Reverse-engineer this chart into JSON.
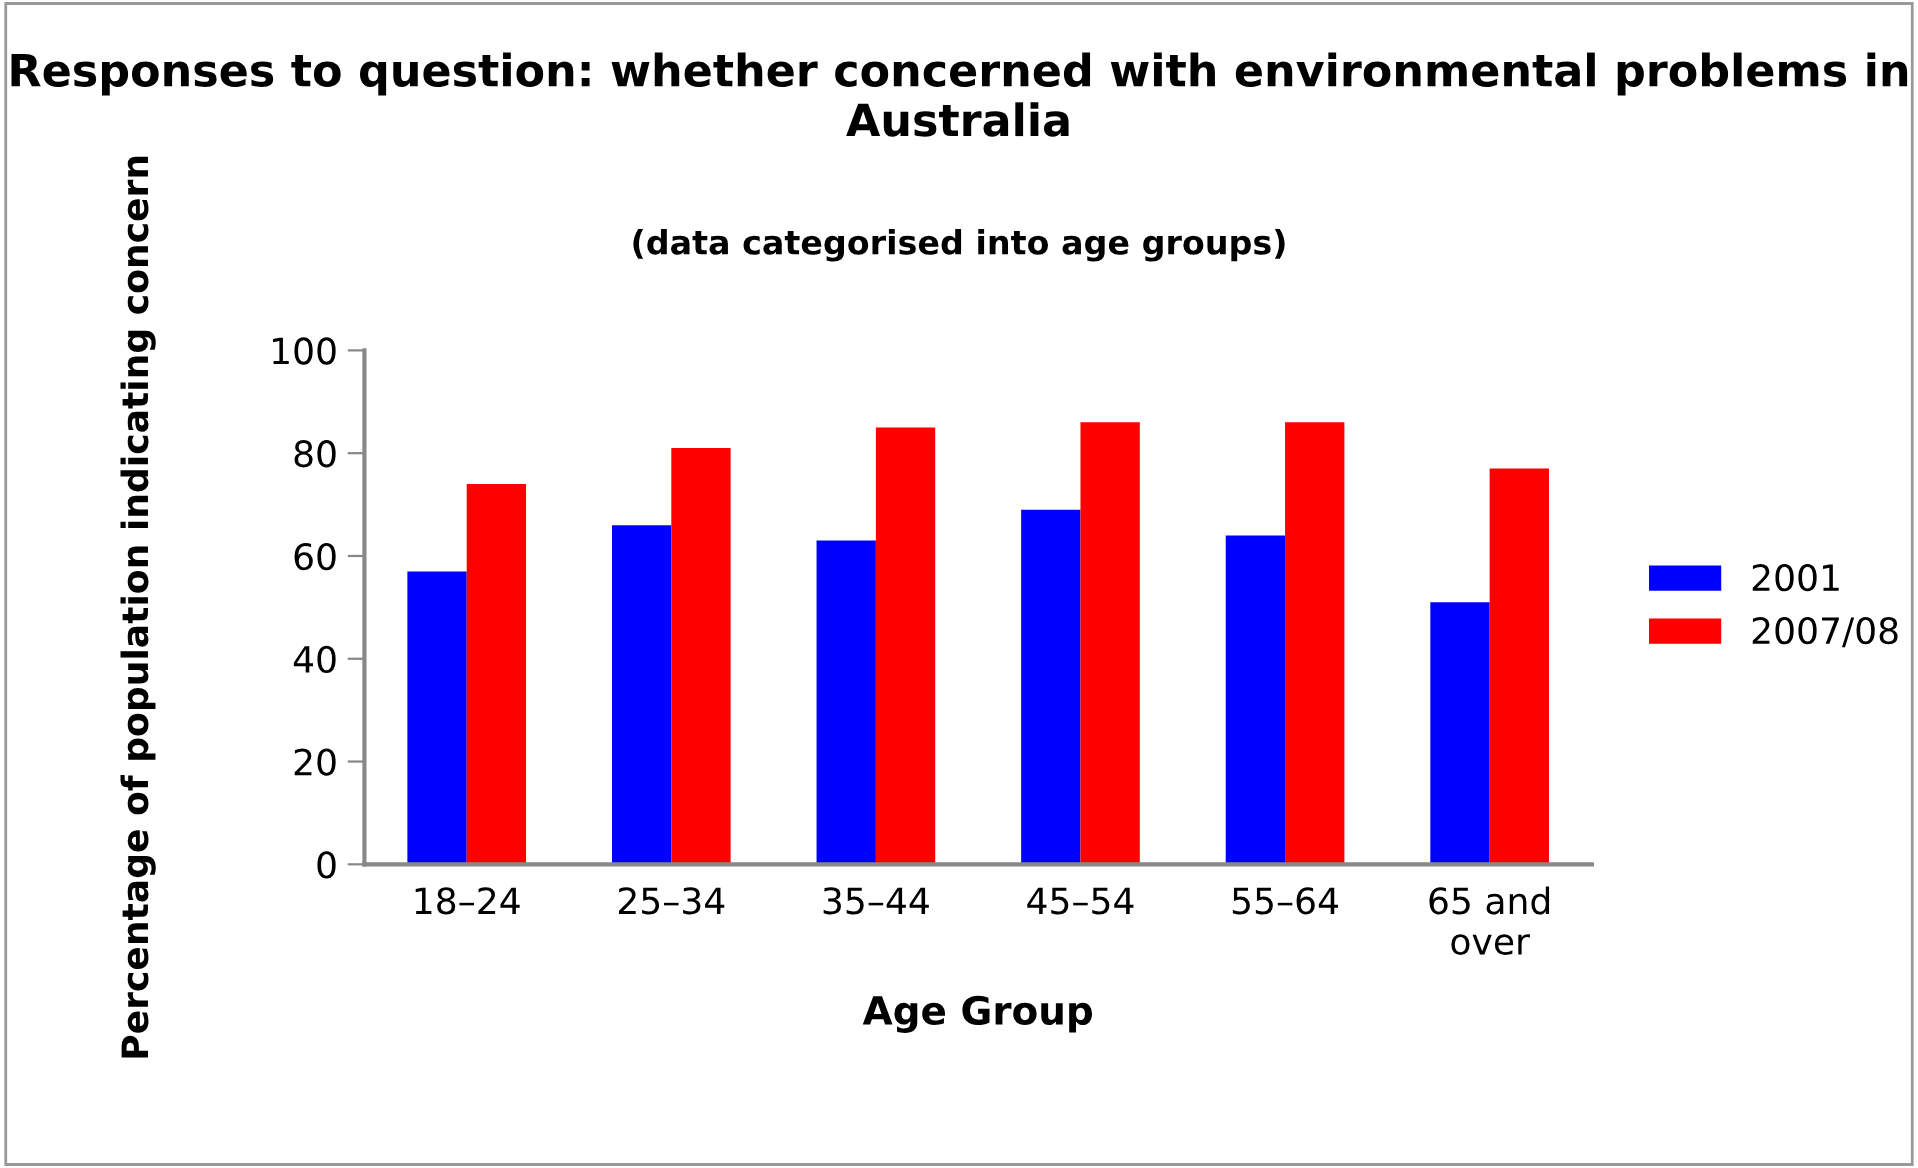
{
  "chart_data": {
    "type": "bar",
    "title": "Responses to question: whether concerned with environmental problems in Australia",
    "subtitle": "(data categorised into age groups)",
    "xlabel": "Age Group",
    "ylabel": "Percentage of population indicating concern",
    "categories": [
      "18–24",
      "25–34",
      "35–44",
      "45–54",
      "55–64",
      "65 and over"
    ],
    "series": [
      {
        "name": "2001",
        "color": "#0000ff",
        "values": [
          57,
          66,
          63,
          69,
          64,
          51
        ]
      },
      {
        "name": "2007/08",
        "color": "#ff0000",
        "values": [
          74,
          81,
          85,
          86,
          86,
          77
        ]
      }
    ],
    "ylim": [
      0,
      100
    ],
    "yticks": [
      0,
      20,
      40,
      60,
      80,
      100
    ],
    "grid": false,
    "legend": "right"
  }
}
